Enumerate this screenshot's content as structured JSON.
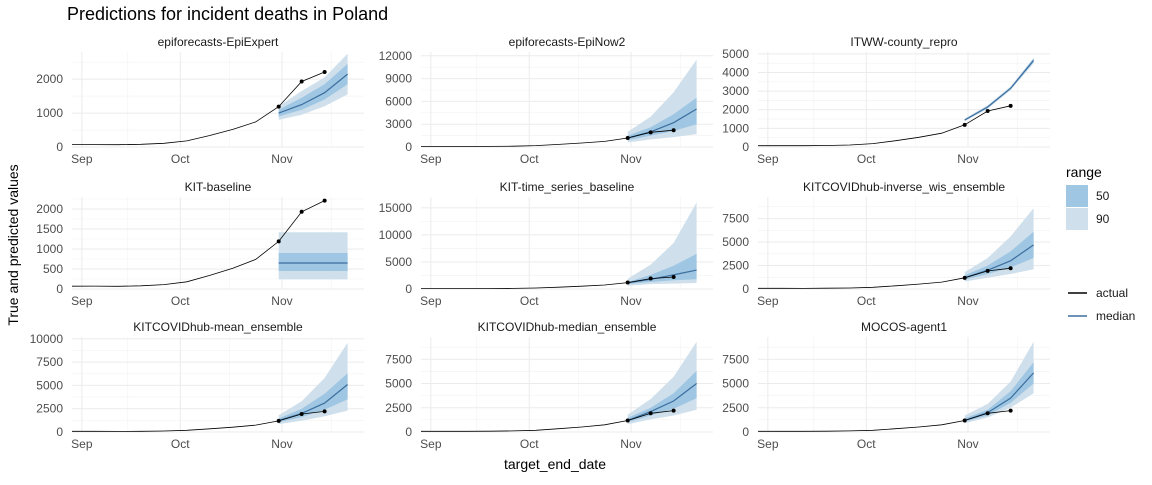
{
  "chart_data": {
    "type": "line",
    "title": "Predictions for incident deaths in Poland",
    "xlabel": "target_end_date",
    "ylabel": "True and predicted values",
    "x_ticks": [
      "Sep",
      "Oct",
      "Nov"
    ],
    "x_tick_dates": [
      "2020-09-01",
      "2020-10-01",
      "2020-11-01"
    ],
    "xlim": [
      "2020-08-29",
      "2020-11-26"
    ],
    "grid": true,
    "legend": {
      "position": "right",
      "range_title": "range",
      "range_items": [
        {
          "label": "50",
          "color": "#9fc6e2"
        },
        {
          "label": "90",
          "color": "#cfe0ec"
        }
      ],
      "line_items": [
        {
          "label": "actual",
          "color": "#000000"
        },
        {
          "label": "median",
          "color": "#3b6e9e"
        }
      ]
    },
    "actual": {
      "x": [
        "2020-08-29",
        "2020-09-05",
        "2020-09-12",
        "2020-09-19",
        "2020-09-26",
        "2020-10-03",
        "2020-10-10",
        "2020-10-17",
        "2020-10-24",
        "2020-10-31",
        "2020-11-07",
        "2020-11-14"
      ],
      "y": [
        70,
        72,
        68,
        80,
        110,
        180,
        340,
        520,
        740,
        1190,
        1930,
        2210
      ]
    },
    "forecast_x": [
      "2020-10-31",
      "2020-11-07",
      "2020-11-14",
      "2020-11-21"
    ],
    "panels": [
      {
        "name": "epiforecasts-EpiExpert",
        "ylim": [
          0,
          2800
        ],
        "yticks": [
          0,
          1000,
          2000
        ],
        "median": [
          1000,
          1250,
          1600,
          2150
        ],
        "q50": [
          [
            900,
            1100
          ],
          [
            1100,
            1450
          ],
          [
            1400,
            1850
          ],
          [
            1850,
            2450
          ]
        ],
        "q90": [
          [
            800,
            1200
          ],
          [
            950,
            1650
          ],
          [
            1200,
            2050
          ],
          [
            1550,
            2750
          ]
        ]
      },
      {
        "name": "epiforecasts-EpiNow2",
        "ylim": [
          0,
          12500
        ],
        "yticks": [
          0,
          3000,
          6000,
          9000,
          12000
        ],
        "median": [
          1200,
          2000,
          3200,
          5000
        ],
        "q50": [
          [
            900,
            1500
          ],
          [
            1500,
            2600
          ],
          [
            2100,
            4300
          ],
          [
            3000,
            6500
          ]
        ],
        "q90": [
          [
            600,
            2000
          ],
          [
            1000,
            4000
          ],
          [
            1300,
            7200
          ],
          [
            1700,
            11500
          ]
        ]
      },
      {
        "name": "ITWW-county_repro",
        "ylim": [
          0,
          5100
        ],
        "yticks": [
          0,
          1000,
          2000,
          3000,
          4000,
          5000
        ],
        "median": [
          1450,
          2150,
          3150,
          4650
        ],
        "q50": [
          [
            1400,
            1500
          ],
          [
            2100,
            2200
          ],
          [
            3100,
            3200
          ],
          [
            4550,
            4750
          ]
        ],
        "q90": [
          [
            1380,
            1520
          ],
          [
            2050,
            2250
          ],
          [
            3050,
            3250
          ],
          [
            4500,
            4800
          ]
        ]
      },
      {
        "name": "KIT-baseline",
        "ylim": [
          0,
          2300
        ],
        "yticks": [
          0,
          500,
          1000,
          1500,
          2000
        ],
        "median": [
          650,
          650,
          650,
          650
        ],
        "q50": [
          [
            450,
            900
          ],
          [
            450,
            900
          ],
          [
            450,
            900
          ],
          [
            450,
            900
          ]
        ],
        "q90": [
          [
            240,
            1420
          ],
          [
            240,
            1420
          ],
          [
            240,
            1420
          ],
          [
            240,
            1420
          ]
        ]
      },
      {
        "name": "KIT-time_series_baseline",
        "ylim": [
          0,
          17000
        ],
        "yticks": [
          0,
          5000,
          10000,
          15000
        ],
        "median": [
          1150,
          1800,
          2600,
          3500
        ],
        "q50": [
          [
            900,
            1300
          ],
          [
            1300,
            2600
          ],
          [
            1600,
            4300
          ],
          [
            1800,
            6500
          ]
        ],
        "q90": [
          [
            600,
            1900
          ],
          [
            900,
            4500
          ],
          [
            1000,
            8500
          ],
          [
            1100,
            16000
          ]
        ]
      },
      {
        "name": "KITCOVIDhub-inverse_wis_ensemble",
        "ylim": [
          0,
          9800
        ],
        "yticks": [
          0,
          2500,
          5000,
          7500
        ],
        "median": [
          1200,
          2000,
          3000,
          4700
        ],
        "q50": [
          [
            1000,
            1450
          ],
          [
            1600,
            2500
          ],
          [
            2300,
            4000
          ],
          [
            3300,
            6100
          ]
        ],
        "q90": [
          [
            800,
            1800
          ],
          [
            1200,
            3300
          ],
          [
            1600,
            5600
          ],
          [
            2100,
            8600
          ]
        ]
      },
      {
        "name": "KITCOVIDhub-mean_ensemble",
        "ylim": [
          0,
          10200
        ],
        "yticks": [
          0,
          2500,
          5000,
          7500,
          10000
        ],
        "median": [
          1250,
          2000,
          3100,
          5100
        ],
        "q50": [
          [
            1050,
            1450
          ],
          [
            1600,
            2500
          ],
          [
            2400,
            4100
          ],
          [
            3500,
            6300
          ]
        ],
        "q90": [
          [
            850,
            1800
          ],
          [
            1200,
            3300
          ],
          [
            1700,
            5800
          ],
          [
            2300,
            9600
          ]
        ]
      },
      {
        "name": "KITCOVIDhub-median_ensemble",
        "ylim": [
          0,
          9800
        ],
        "yticks": [
          0,
          2500,
          5000,
          7500
        ],
        "median": [
          1200,
          2100,
          3200,
          5000
        ],
        "q50": [
          [
            1000,
            1450
          ],
          [
            1700,
            2500
          ],
          [
            2400,
            4000
          ],
          [
            3500,
            6300
          ]
        ],
        "q90": [
          [
            800,
            1800
          ],
          [
            1300,
            3400
          ],
          [
            1700,
            5700
          ],
          [
            2300,
            9300
          ]
        ]
      },
      {
        "name": "MOCOS-agent1",
        "ylim": [
          0,
          9800
        ],
        "yticks": [
          0,
          2500,
          5000,
          7500
        ],
        "median": [
          1200,
          2000,
          3500,
          6100
        ],
        "q50": [
          [
            1050,
            1400
          ],
          [
            1700,
            2300
          ],
          [
            3000,
            4200
          ],
          [
            5000,
            7200
          ]
        ],
        "q90": [
          [
            900,
            1700
          ],
          [
            1500,
            2900
          ],
          [
            2500,
            5200
          ],
          [
            4000,
            9300
          ]
        ]
      }
    ]
  }
}
